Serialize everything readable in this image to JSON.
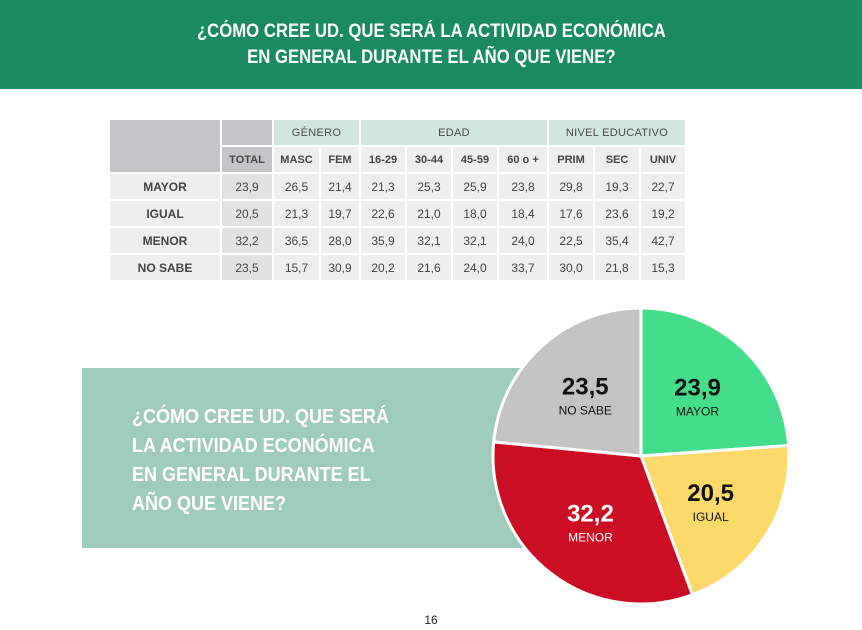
{
  "header": {
    "title_line1": "¿CÓMO CREE UD. QUE SERÁ LA ACTIVIDAD ECONÓMICA",
    "title_line2": "EN GENERAL DURANTE EL AÑO QUE VIENE?"
  },
  "table": {
    "groups": {
      "gender": "GÉNERO",
      "age": "EDAD",
      "education": "NIVEL EDUCATIVO"
    },
    "columns": [
      "TOTAL",
      "MASC",
      "FEM",
      "16-29",
      "30-44",
      "45-59",
      "60 o +",
      "PRIM",
      "SEC",
      "UNIV"
    ],
    "rows": [
      {
        "label": "MAYOR",
        "values": [
          "23,9",
          "26,5",
          "21,4",
          "21,3",
          "25,3",
          "25,9",
          "23,8",
          "29,8",
          "19,3",
          "22,7"
        ]
      },
      {
        "label": "IGUAL",
        "values": [
          "20,5",
          "21,3",
          "19,7",
          "22,6",
          "21,0",
          "18,0",
          "18,4",
          "17,6",
          "23,6",
          "19,2"
        ]
      },
      {
        "label": "MENOR",
        "values": [
          "32,2",
          "36,5",
          "28,0",
          "35,9",
          "32,1",
          "32,1",
          "24,0",
          "22,5",
          "35,4",
          "42,7"
        ]
      },
      {
        "label": "NO SABE",
        "values": [
          "23,5",
          "15,7",
          "30,9",
          "20,2",
          "21,6",
          "24,0",
          "33,7",
          "30,0",
          "21,8",
          "15,3"
        ]
      }
    ]
  },
  "callout": {
    "lines": [
      "¿CÓMO CREE UD. QUE SERÁ",
      "LA ACTIVIDAD ECONÓMICA",
      "EN GENERAL DURANTE EL",
      "AÑO QUE VIENE?"
    ]
  },
  "chart_data": {
    "type": "pie",
    "slices": [
      {
        "label": "MAYOR",
        "value": 23.9,
        "display": "23,9",
        "color": "#44dd8c"
      },
      {
        "label": "IGUAL",
        "value": 20.5,
        "display": "20,5",
        "color": "#fdd96a"
      },
      {
        "label": "MENOR",
        "value": 32.2,
        "display": "32,2",
        "color": "#cc0e24"
      },
      {
        "label": "NO SABE",
        "value": 23.5,
        "display": "23,5",
        "color": "#c3c3c3"
      }
    ],
    "start_angle": "12 o'clock",
    "direction": "clockwise",
    "legend": "none"
  },
  "footer": {
    "page_number": "16"
  }
}
